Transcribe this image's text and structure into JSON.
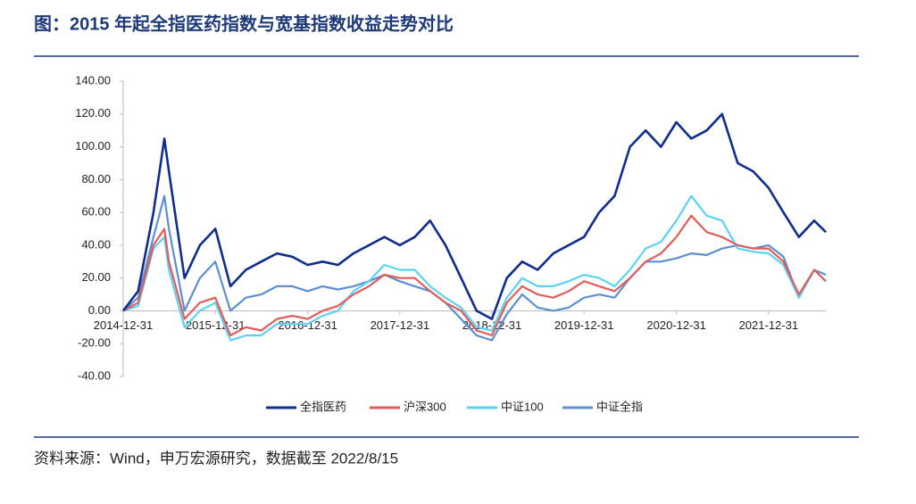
{
  "chart_data": {
    "type": "line",
    "title": "图：2015 年起全指医药指数与宽基指数收益走势对比",
    "source": "资料来源：Wind，申万宏源研究，数据截至 2022/8/15",
    "x": [
      "2014-12-31",
      "2015-02-28",
      "2015-04-30",
      "2015-06-12",
      "2015-06-30",
      "2015-08-31",
      "2015-10-31",
      "2015-12-31",
      "2016-02-29",
      "2016-04-30",
      "2016-06-30",
      "2016-08-31",
      "2016-10-31",
      "2016-12-31",
      "2017-02-28",
      "2017-04-30",
      "2017-06-30",
      "2017-08-31",
      "2017-10-31",
      "2017-12-31",
      "2018-02-28",
      "2018-04-30",
      "2018-06-30",
      "2018-08-31",
      "2018-10-31",
      "2018-12-31",
      "2019-02-28",
      "2019-04-30",
      "2019-06-30",
      "2019-08-31",
      "2019-10-31",
      "2019-12-31",
      "2020-02-29",
      "2020-04-30",
      "2020-06-30",
      "2020-08-31",
      "2020-10-31",
      "2020-12-31",
      "2021-02-28",
      "2021-04-30",
      "2021-06-30",
      "2021-08-31",
      "2021-10-31",
      "2021-12-31",
      "2022-02-28",
      "2022-04-30",
      "2022-06-30",
      "2022-08-15"
    ],
    "xlim": [
      "2014-12-31",
      "2022-08-15"
    ],
    "xticks": [
      "2014-12-31",
      "2015-12-31",
      "2016-12-31",
      "2017-12-31",
      "2018-12-31",
      "2019-12-31",
      "2020-12-31",
      "2021-12-31"
    ],
    "ylim": [
      -40,
      140
    ],
    "yticks": [
      {
        "value": -40,
        "label": "-40.00"
      },
      {
        "value": -20,
        "label": "-20.00"
      },
      {
        "value": 0,
        "label": "0.00"
      },
      {
        "value": 20,
        "label": "20.00"
      },
      {
        "value": 40,
        "label": "40.00"
      },
      {
        "value": 60,
        "label": "60.00"
      },
      {
        "value": 80,
        "label": "80.00"
      },
      {
        "value": 100,
        "label": "100.00"
      },
      {
        "value": 120,
        "label": "120.00"
      },
      {
        "value": 140,
        "label": "140.00"
      }
    ],
    "series": [
      {
        "name": "全指医药",
        "color": "#0e2d8e",
        "values": [
          0,
          12,
          60,
          105,
          85,
          20,
          40,
          50,
          15,
          25,
          30,
          35,
          33,
          28,
          30,
          28,
          35,
          40,
          45,
          40,
          45,
          55,
          40,
          20,
          0,
          -5,
          20,
          30,
          25,
          35,
          40,
          45,
          60,
          70,
          100,
          110,
          100,
          115,
          105,
          110,
          120,
          90,
          85,
          75,
          60,
          45,
          55,
          48
        ]
      },
      {
        "name": "沪深300",
        "color": "#e35b5b",
        "values": [
          0,
          5,
          40,
          50,
          30,
          -5,
          5,
          8,
          -15,
          -10,
          -12,
          -5,
          -3,
          -5,
          0,
          3,
          10,
          15,
          22,
          20,
          20,
          12,
          5,
          0,
          -12,
          -15,
          5,
          15,
          10,
          8,
          12,
          18,
          15,
          12,
          20,
          30,
          35,
          45,
          58,
          48,
          45,
          40,
          38,
          38,
          30,
          10,
          25,
          18
        ]
      },
      {
        "name": "中证100",
        "color": "#5ad2f4",
        "values": [
          0,
          3,
          38,
          45,
          25,
          -10,
          0,
          5,
          -18,
          -15,
          -15,
          -8,
          -8,
          -8,
          -3,
          0,
          12,
          18,
          28,
          25,
          25,
          15,
          8,
          2,
          -10,
          -12,
          8,
          20,
          15,
          15,
          18,
          22,
          20,
          15,
          25,
          38,
          42,
          55,
          70,
          58,
          55,
          38,
          36,
          35,
          28,
          8,
          25,
          18
        ]
      },
      {
        "name": "中证全指",
        "color": "#5b8fd1",
        "values": [
          0,
          8,
          45,
          70,
          50,
          0,
          20,
          30,
          0,
          8,
          10,
          15,
          15,
          12,
          15,
          13,
          15,
          18,
          22,
          18,
          15,
          12,
          5,
          -5,
          -15,
          -18,
          -2,
          10,
          2,
          0,
          2,
          8,
          10,
          8,
          20,
          30,
          30,
          32,
          35,
          34,
          38,
          40,
          38,
          40,
          33,
          8,
          25,
          22
        ]
      }
    ]
  }
}
